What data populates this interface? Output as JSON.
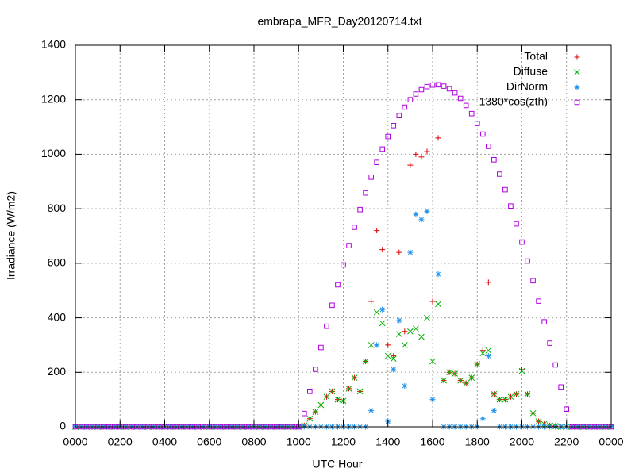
{
  "chart_data": {
    "type": "scatter",
    "title": "embrapa_MFR_Day20120714.txt",
    "x_label": "UTC Hour",
    "y_label": "Irradiance (W/m2)",
    "xlim": [
      0,
      24
    ],
    "ylim": [
      0,
      1400
    ],
    "xticks": [
      {
        "value": 0,
        "label": "0000"
      },
      {
        "value": 2,
        "label": "0200"
      },
      {
        "value": 4,
        "label": "0400"
      },
      {
        "value": 6,
        "label": "0600"
      },
      {
        "value": 8,
        "label": "0800"
      },
      {
        "value": 10,
        "label": "1000"
      },
      {
        "value": 12,
        "label": "1200"
      },
      {
        "value": 14,
        "label": "1400"
      },
      {
        "value": 16,
        "label": "1600"
      },
      {
        "value": 18,
        "label": "1800"
      },
      {
        "value": 20,
        "label": "2000"
      },
      {
        "value": 22,
        "label": "2200"
      },
      {
        "value": 24,
        "label": "0000"
      }
    ],
    "yticks": [
      0,
      200,
      400,
      600,
      800,
      1000,
      1200,
      1400
    ],
    "grid": true,
    "legend": "top right",
    "x": [
      0,
      0.25,
      0.5,
      0.75,
      1,
      1.25,
      1.5,
      1.75,
      2,
      2.25,
      2.5,
      2.75,
      3,
      3.25,
      3.5,
      3.75,
      4,
      4.25,
      4.5,
      4.75,
      5,
      5.25,
      5.5,
      5.75,
      6,
      6.25,
      6.5,
      6.75,
      7,
      7.25,
      7.5,
      7.75,
      8,
      8.25,
      8.5,
      8.75,
      9,
      9.25,
      9.5,
      9.75,
      10,
      10.25,
      10.5,
      10.75,
      11,
      11.25,
      11.5,
      11.75,
      12,
      12.25,
      12.5,
      12.75,
      13,
      13.25,
      13.5,
      13.75,
      14,
      14.25,
      14.5,
      14.75,
      15,
      15.25,
      15.5,
      15.75,
      16,
      16.25,
      16.5,
      16.75,
      17,
      17.25,
      17.5,
      17.75,
      18,
      18.25,
      18.5,
      18.75,
      19,
      19.25,
      19.5,
      19.75,
      20,
      20.25,
      20.5,
      20.75,
      21,
      21.25,
      21.5,
      21.75,
      22,
      22.25,
      22.5,
      22.75,
      23,
      23.25,
      23.5,
      23.75,
      24
    ],
    "series": [
      {
        "name": "Total",
        "color": "#dd0000",
        "marker": "plus",
        "values": [
          0,
          0,
          0,
          0,
          0,
          0,
          0,
          0,
          0,
          0,
          0,
          0,
          0,
          0,
          0,
          0,
          0,
          0,
          0,
          0,
          0,
          0,
          0,
          0,
          0,
          0,
          0,
          0,
          0,
          0,
          0,
          0,
          0,
          0,
          0,
          0,
          0,
          0,
          0,
          0,
          0,
          5,
          30,
          55,
          80,
          110,
          130,
          100,
          95,
          140,
          180,
          130,
          240,
          460,
          720,
          650,
          300,
          260,
          640,
          350,
          960,
          1000,
          990,
          1010,
          460,
          1060,
          170,
          200,
          195,
          170,
          160,
          180,
          230,
          280,
          530,
          120,
          100,
          100,
          110,
          120,
          210,
          120,
          50,
          20,
          10,
          5,
          3,
          0,
          0,
          0,
          0,
          0,
          0,
          0,
          0,
          0,
          0
        ]
      },
      {
        "name": "Diffuse",
        "color": "#00b000",
        "marker": "cross",
        "values": [
          0,
          0,
          0,
          0,
          0,
          0,
          0,
          0,
          0,
          0,
          0,
          0,
          0,
          0,
          0,
          0,
          0,
          0,
          0,
          0,
          0,
          0,
          0,
          0,
          0,
          0,
          0,
          0,
          0,
          0,
          0,
          0,
          0,
          0,
          0,
          0,
          0,
          0,
          0,
          0,
          0,
          5,
          30,
          55,
          80,
          110,
          130,
          100,
          95,
          140,
          180,
          130,
          240,
          300,
          420,
          380,
          260,
          250,
          340,
          300,
          350,
          360,
          330,
          400,
          240,
          450,
          170,
          200,
          195,
          170,
          160,
          180,
          230,
          270,
          280,
          120,
          100,
          100,
          110,
          120,
          205,
          120,
          50,
          20,
          10,
          5,
          3,
          0,
          0,
          0,
          0,
          0,
          0,
          0,
          0,
          0,
          0
        ]
      },
      {
        "name": "DirNorm",
        "color": "#1e90e8",
        "marker": "star",
        "values": [
          0,
          0,
          0,
          0,
          0,
          0,
          0,
          0,
          0,
          0,
          0,
          0,
          0,
          0,
          0,
          0,
          0,
          0,
          0,
          0,
          0,
          0,
          0,
          0,
          0,
          0,
          0,
          0,
          0,
          0,
          0,
          0,
          0,
          0,
          0,
          0,
          0,
          0,
          0,
          0,
          0,
          0,
          0,
          0,
          0,
          0,
          0,
          0,
          0,
          0,
          0,
          0,
          0,
          60,
          300,
          430,
          20,
          210,
          390,
          150,
          640,
          780,
          760,
          790,
          100,
          560,
          0,
          0,
          0,
          0,
          0,
          0,
          0,
          30,
          260,
          60,
          0,
          0,
          0,
          0,
          0,
          0,
          0,
          0,
          0,
          0,
          0,
          0,
          0,
          0,
          0,
          0,
          0,
          0,
          0,
          0,
          0
        ]
      },
      {
        "name": "1380*cos(zth)",
        "color": "#b000e0",
        "marker": "square",
        "values": [
          0,
          0,
          0,
          0,
          0,
          0,
          0,
          0,
          0,
          0,
          0,
          0,
          0,
          0,
          0,
          0,
          0,
          0,
          0,
          0,
          0,
          0,
          0,
          0,
          0,
          0,
          0,
          0,
          0,
          0,
          0,
          0,
          0,
          0,
          0,
          0,
          0,
          0,
          0,
          0,
          0,
          49,
          130,
          211,
          291,
          369,
          446,
          521,
          594,
          665,
          732,
          797,
          858,
          916,
          970,
          1019,
          1065,
          1105,
          1142,
          1173,
          1200,
          1221,
          1237,
          1248,
          1254,
          1255,
          1250,
          1240,
          1225,
          1205,
          1179,
          1149,
          1113,
          1074,
          1029,
          980,
          927,
          870,
          810,
          745,
          678,
          608,
          536,
          461,
          385,
          307,
          227,
          146,
          65,
          0,
          0,
          0,
          0,
          0,
          0,
          0,
          0
        ]
      }
    ]
  }
}
